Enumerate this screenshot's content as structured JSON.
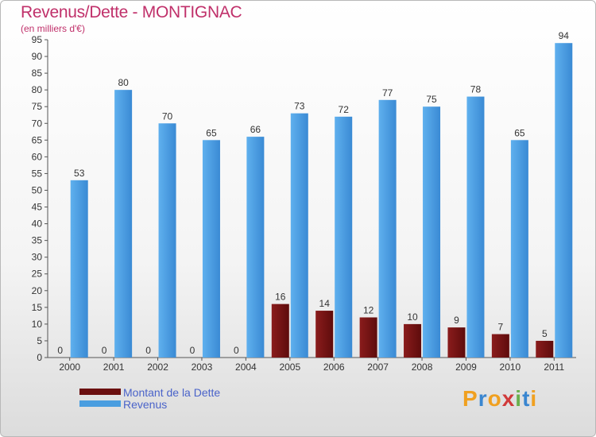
{
  "title": "Revenus/Dette - MONTIGNAC",
  "subtitle": "(en milliers d'€)",
  "colors": {
    "debt": "#7a1414",
    "revenue": "#4a9ee0",
    "title": "#c0306a",
    "legend_text": "#4a63c9"
  },
  "chart_data": {
    "type": "bar",
    "title": "Revenus/Dette - MONTIGNAC",
    "subtitle": "(en milliers d'€)",
    "categories": [
      "2000",
      "2001",
      "2002",
      "2003",
      "2004",
      "2005",
      "2006",
      "2007",
      "2008",
      "2009",
      "2010",
      "2011"
    ],
    "series": [
      {
        "name": "Montant de la Dette",
        "values": [
          0,
          0,
          0,
          0,
          0,
          16,
          14,
          12,
          10,
          9,
          7,
          5
        ]
      },
      {
        "name": "Revenus",
        "values": [
          53,
          80,
          70,
          65,
          66,
          73,
          72,
          77,
          75,
          78,
          65,
          94
        ]
      }
    ],
    "ylim": [
      0,
      95
    ],
    "yticks": [
      0,
      5,
      10,
      15,
      20,
      25,
      30,
      35,
      40,
      45,
      50,
      55,
      60,
      65,
      70,
      75,
      80,
      85,
      90,
      95
    ],
    "grid": false,
    "legend_position": "bottom-left"
  },
  "legend": {
    "debt_label": "Montant de la Dette",
    "revenue_label": "Revenus"
  },
  "logo": {
    "letters": [
      "P",
      "r",
      "o",
      "x",
      "i",
      "t",
      "i"
    ],
    "colors": [
      "#f0a020",
      "#3a86d0",
      "#f0a020",
      "#d03a3a",
      "#6ab04c",
      "#3a86d0",
      "#f0a020"
    ]
  }
}
